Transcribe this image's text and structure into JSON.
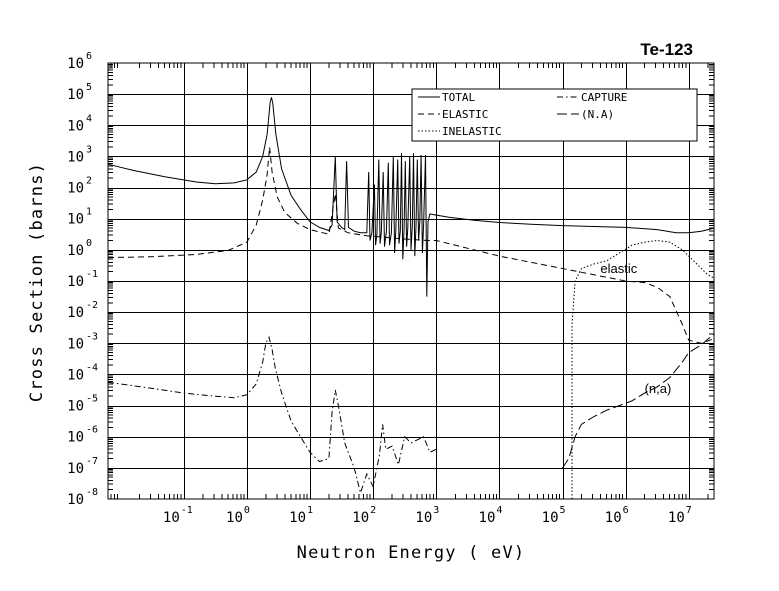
{
  "chart_data": {
    "type": "line",
    "title": "Te-123",
    "xlabel": "Neutron Energy ( eV)",
    "ylabel": "Cross Section (barns)",
    "xscale": "log",
    "yscale": "log",
    "xlim_exp": [
      -2.2,
      7.4
    ],
    "ylim_exp": [
      -8,
      6
    ],
    "x_ticks": [
      {
        "base": "10",
        "exp": "-1",
        "value": -1
      },
      {
        "base": "10",
        "exp": "0",
        "value": 0
      },
      {
        "base": "10",
        "exp": "1",
        "value": 1
      },
      {
        "base": "10",
        "exp": "2",
        "value": 2
      },
      {
        "base": "10",
        "exp": "3",
        "value": 3
      },
      {
        "base": "10",
        "exp": "4",
        "value": 4
      },
      {
        "base": "10",
        "exp": "5",
        "value": 5
      },
      {
        "base": "10",
        "exp": "6",
        "value": 6
      },
      {
        "base": "10",
        "exp": "7",
        "value": 7
      }
    ],
    "y_ticks": [
      {
        "base": "10",
        "exp": "6",
        "value": 6
      },
      {
        "base": "10",
        "exp": "5",
        "value": 5
      },
      {
        "base": "10",
        "exp": "4",
        "value": 4
      },
      {
        "base": "10",
        "exp": "3",
        "value": 3
      },
      {
        "base": "10",
        "exp": "2",
        "value": 2
      },
      {
        "base": "10",
        "exp": "1",
        "value": 1
      },
      {
        "base": "10",
        "exp": "0",
        "value": 0
      },
      {
        "base": "10",
        "exp": "-1",
        "value": -1
      },
      {
        "base": "10",
        "exp": "-2",
        "value": -2
      },
      {
        "base": "10",
        "exp": "-3",
        "value": -3
      },
      {
        "base": "10",
        "exp": "-4",
        "value": -4
      },
      {
        "base": "10",
        "exp": "-5",
        "value": -5
      },
      {
        "base": "10",
        "exp": "-6",
        "value": -6
      },
      {
        "base": "10",
        "exp": "-7",
        "value": -7
      },
      {
        "base": "10",
        "exp": "-8",
        "value": -8
      }
    ],
    "legend": {
      "placement": "top-right",
      "entries": [
        {
          "label": "TOTAL",
          "style": "solid"
        },
        {
          "label": "CAPTURE",
          "style": "dash-dot"
        },
        {
          "label": "ELASTIC",
          "style": "dashed"
        },
        {
          "label": "(N.A)",
          "style": "long-dash"
        },
        {
          "label": "INELASTIC",
          "style": "dotted"
        }
      ]
    },
    "annotations": [
      {
        "text": "elastic",
        "x_exp": 5.6,
        "y_exp": -0.75
      },
      {
        "text": "(n,a)",
        "x_exp": 6.3,
        "y_exp": -4.6
      }
    ],
    "series": [
      {
        "name": "TOTAL",
        "style": "solid",
        "points": [
          [
            -2.2,
            2.75
          ],
          [
            -1.8,
            2.55
          ],
          [
            -1.3,
            2.35
          ],
          [
            -0.8,
            2.18
          ],
          [
            -0.5,
            2.12
          ],
          [
            -0.2,
            2.15
          ],
          [
            0.0,
            2.25
          ],
          [
            0.15,
            2.5
          ],
          [
            0.25,
            3.0
          ],
          [
            0.32,
            3.7
          ],
          [
            0.37,
            4.75
          ],
          [
            0.39,
            4.9
          ],
          [
            0.41,
            4.7
          ],
          [
            0.46,
            3.7
          ],
          [
            0.55,
            2.6
          ],
          [
            0.7,
            1.75
          ],
          [
            0.85,
            1.3
          ],
          [
            1.0,
            0.9
          ],
          [
            1.15,
            0.72
          ],
          [
            1.3,
            0.62
          ],
          [
            1.35,
            0.8
          ],
          [
            1.4,
            3.0
          ],
          [
            1.43,
            0.9
          ],
          [
            1.5,
            0.72
          ],
          [
            1.55,
            0.65
          ],
          [
            1.58,
            2.85
          ],
          [
            1.61,
            0.72
          ],
          [
            1.7,
            0.6
          ],
          [
            1.8,
            0.55
          ],
          [
            1.9,
            0.55
          ],
          [
            1.93,
            2.5
          ],
          [
            1.95,
            0.3
          ],
          [
            1.98,
            0.55
          ],
          [
            2.02,
            2.1
          ],
          [
            2.04,
            0.15
          ],
          [
            2.06,
            0.5
          ],
          [
            2.09,
            2.9
          ],
          [
            2.11,
            0.2
          ],
          [
            2.13,
            0.55
          ],
          [
            2.16,
            2.5
          ],
          [
            2.18,
            0.1
          ],
          [
            2.21,
            0.6
          ],
          [
            2.24,
            2.8
          ],
          [
            2.26,
            0.15
          ],
          [
            2.29,
            0.55
          ],
          [
            2.32,
            3.0
          ],
          [
            2.34,
            -0.1
          ],
          [
            2.36,
            0.6
          ],
          [
            2.39,
            2.9
          ],
          [
            2.41,
            0.2
          ],
          [
            2.43,
            0.6
          ],
          [
            2.45,
            3.1
          ],
          [
            2.47,
            -0.3
          ],
          [
            2.49,
            0.7
          ],
          [
            2.51,
            2.85
          ],
          [
            2.53,
            0.1
          ],
          [
            2.55,
            0.7
          ],
          [
            2.58,
            3.0
          ],
          [
            2.6,
            0.0
          ],
          [
            2.62,
            0.75
          ],
          [
            2.64,
            3.1
          ],
          [
            2.66,
            -0.2
          ],
          [
            2.68,
            0.75
          ],
          [
            2.7,
            2.9
          ],
          [
            2.72,
            0.3
          ],
          [
            2.74,
            0.9
          ],
          [
            2.76,
            3.05
          ],
          [
            2.78,
            -0.1
          ],
          [
            2.8,
            0.8
          ],
          [
            2.83,
            3.05
          ],
          [
            2.85,
            -1.5
          ],
          [
            2.87,
            0.9
          ],
          [
            2.9,
            1.15
          ],
          [
            3.2,
            1.05
          ],
          [
            3.6,
            0.95
          ],
          [
            4.0,
            0.88
          ],
          [
            4.5,
            0.82
          ],
          [
            5.0,
            0.78
          ],
          [
            5.5,
            0.75
          ],
          [
            6.0,
            0.72
          ],
          [
            6.5,
            0.65
          ],
          [
            6.8,
            0.55
          ],
          [
            7.0,
            0.55
          ],
          [
            7.2,
            0.6
          ],
          [
            7.4,
            0.7
          ]
        ]
      },
      {
        "name": "ELASTIC",
        "style": "dashed",
        "points": [
          [
            -2.2,
            -0.25
          ],
          [
            -1.5,
            -0.22
          ],
          [
            -0.8,
            -0.15
          ],
          [
            -0.3,
            -0.02
          ],
          [
            0.0,
            0.25
          ],
          [
            0.15,
            0.8
          ],
          [
            0.25,
            1.6
          ],
          [
            0.32,
            2.4
          ],
          [
            0.36,
            3.3
          ],
          [
            0.4,
            2.5
          ],
          [
            0.48,
            1.7
          ],
          [
            0.6,
            1.2
          ],
          [
            0.8,
            0.85
          ],
          [
            1.0,
            0.65
          ],
          [
            1.2,
            0.55
          ],
          [
            1.3,
            0.5
          ],
          [
            1.4,
            1.8
          ],
          [
            1.45,
            0.7
          ],
          [
            1.6,
            0.55
          ],
          [
            1.9,
            0.45
          ],
          [
            2.2,
            0.4
          ],
          [
            2.5,
            0.35
          ],
          [
            2.85,
            0.3
          ],
          [
            3.0,
            0.3
          ],
          [
            3.5,
            0.05
          ],
          [
            4.0,
            -0.2
          ],
          [
            4.5,
            -0.4
          ],
          [
            5.0,
            -0.6
          ],
          [
            5.5,
            -0.8
          ],
          [
            6.0,
            -1.0
          ],
          [
            6.3,
            -1.05
          ],
          [
            6.5,
            -1.2
          ],
          [
            6.7,
            -1.5
          ],
          [
            6.9,
            -2.4
          ],
          [
            7.0,
            -2.9
          ],
          [
            7.2,
            -3.0
          ],
          [
            7.4,
            -2.85
          ]
        ]
      },
      {
        "name": "CAPTURE",
        "style": "dash-dot",
        "points": [
          [
            -2.2,
            -4.25
          ],
          [
            -1.5,
            -4.45
          ],
          [
            -1.0,
            -4.6
          ],
          [
            -0.5,
            -4.7
          ],
          [
            -0.2,
            -4.75
          ],
          [
            0.0,
            -4.65
          ],
          [
            0.15,
            -4.3
          ],
          [
            0.25,
            -3.6
          ],
          [
            0.3,
            -3.0
          ],
          [
            0.35,
            -2.8
          ],
          [
            0.4,
            -3.2
          ],
          [
            0.45,
            -3.8
          ],
          [
            0.55,
            -4.6
          ],
          [
            0.7,
            -5.5
          ],
          [
            0.85,
            -6.0
          ],
          [
            1.0,
            -6.5
          ],
          [
            1.15,
            -6.8
          ],
          [
            1.3,
            -6.7
          ],
          [
            1.35,
            -5.2
          ],
          [
            1.4,
            -4.5
          ],
          [
            1.45,
            -5.0
          ],
          [
            1.55,
            -6.2
          ],
          [
            1.7,
            -7.0
          ],
          [
            1.8,
            -7.8
          ],
          [
            1.9,
            -7.2
          ],
          [
            2.0,
            -7.6
          ],
          [
            2.1,
            -6.6
          ],
          [
            2.15,
            -5.6
          ],
          [
            2.2,
            -6.4
          ],
          [
            2.3,
            -6.3
          ],
          [
            2.4,
            -6.9
          ],
          [
            2.5,
            -6.0
          ],
          [
            2.6,
            -6.2
          ],
          [
            2.8,
            -6.0
          ],
          [
            2.9,
            -6.5
          ],
          [
            3.0,
            -6.4
          ]
        ]
      },
      {
        "name": "(N.A)",
        "style": "long-dash",
        "points": [
          [
            5.0,
            -7.0
          ],
          [
            5.1,
            -6.7
          ],
          [
            5.2,
            -6.0
          ],
          [
            5.3,
            -5.6
          ],
          [
            5.5,
            -5.35
          ],
          [
            5.7,
            -5.15
          ],
          [
            5.9,
            -5.0
          ],
          [
            6.1,
            -4.85
          ],
          [
            6.3,
            -4.6
          ],
          [
            6.5,
            -4.4
          ],
          [
            6.7,
            -4.1
          ],
          [
            6.9,
            -3.6
          ],
          [
            7.0,
            -3.3
          ],
          [
            7.2,
            -3.05
          ],
          [
            7.4,
            -2.7
          ]
        ]
      },
      {
        "name": "INELASTIC",
        "style": "dotted",
        "points": [
          [
            5.15,
            -8.0
          ],
          [
            5.15,
            -2.4
          ],
          [
            5.2,
            -1.0
          ],
          [
            5.3,
            -0.6
          ],
          [
            5.5,
            -0.45
          ],
          [
            5.7,
            -0.35
          ],
          [
            5.9,
            -0.1
          ],
          [
            6.1,
            0.15
          ],
          [
            6.3,
            0.25
          ],
          [
            6.5,
            0.3
          ],
          [
            6.7,
            0.25
          ],
          [
            6.9,
            0.0
          ],
          [
            7.1,
            -0.4
          ],
          [
            7.3,
            -0.8
          ],
          [
            7.4,
            -0.9
          ]
        ]
      }
    ]
  }
}
